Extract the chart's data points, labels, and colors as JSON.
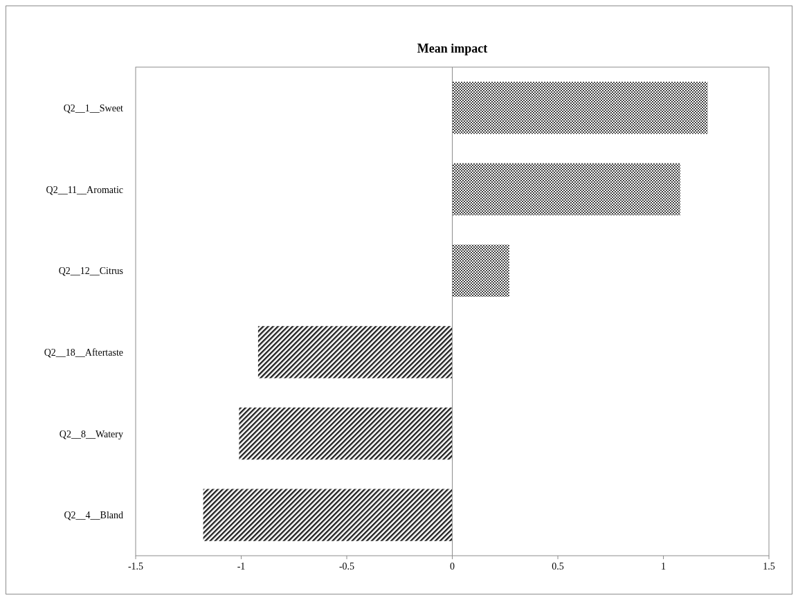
{
  "chart_data": {
    "type": "bar",
    "orientation": "horizontal",
    "title": "Mean impact",
    "categories": [
      "Q2__1__Sweet",
      "Q2__11__Aromatic",
      "Q2__12__Citrus",
      "Q2__18__Aftertaste",
      "Q2__8__Watery",
      "Q2__4__Bland"
    ],
    "values": [
      1.21,
      1.08,
      0.27,
      -0.92,
      -1.01,
      -1.18
    ],
    "colors": [
      "#404040",
      "#404040",
      "#404040",
      "#202020",
      "#202020",
      "#202020"
    ],
    "xlim": [
      -1.5,
      1.5
    ],
    "xticks": [
      -1.5,
      -1,
      -0.5,
      0,
      0.5,
      1,
      1.5
    ]
  }
}
